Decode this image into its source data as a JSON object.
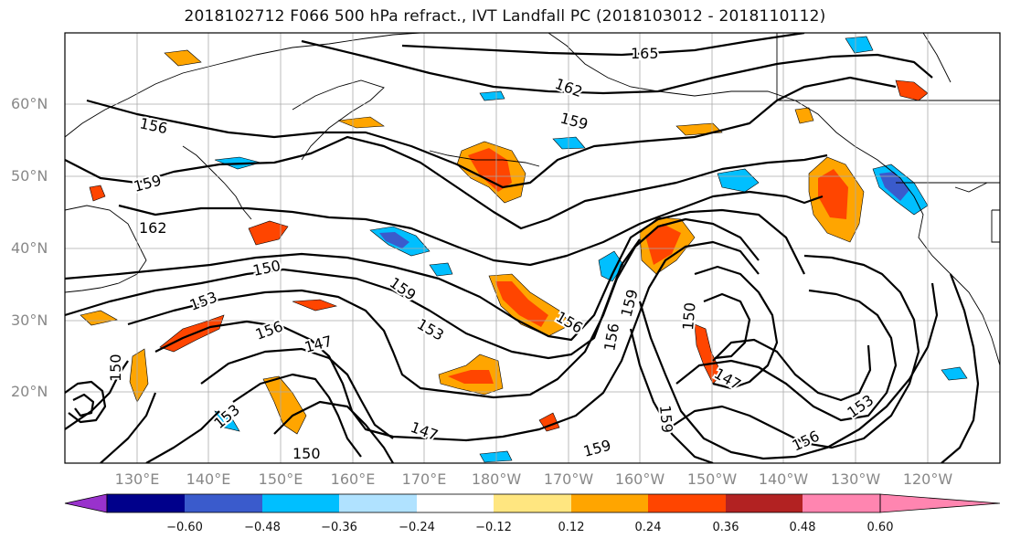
{
  "title": "2018102712 F066 500 hPa refract., IVT Landfall PC (2018103012 - 2018110112)",
  "lat_labels": [
    "60°N",
    "50°N",
    "40°N",
    "30°N",
    "20°N"
  ],
  "lon_labels": [
    "130°E",
    "140°E",
    "150°E",
    "160°E",
    "170°E",
    "180°W",
    "170°W",
    "160°W",
    "150°W",
    "140°W",
    "130°W",
    "120°W"
  ],
  "contour_labels": [
    "165",
    "162",
    "159",
    "156",
    "159",
    "162",
    "150",
    "153",
    "159",
    "153",
    "156",
    "147",
    "150",
    "156",
    "159",
    "150",
    "147",
    "153",
    "156",
    "159",
    "147",
    "150",
    "159",
    "153",
    "156"
  ],
  "colorbar": {
    "ticks": [
      "−0.60",
      "−0.48",
      "−0.36",
      "−0.24",
      "−0.12",
      "0.12",
      "0.24",
      "0.36",
      "0.48",
      "0.60"
    ],
    "colors": [
      "#9932cc",
      "#00008b",
      "#3a5bcc",
      "#00bfff",
      "#b0e2ff",
      "#ffffff",
      "#ffe680",
      "#ffa500",
      "#ff4500",
      "#b22222",
      "#ff85b0"
    ]
  }
}
